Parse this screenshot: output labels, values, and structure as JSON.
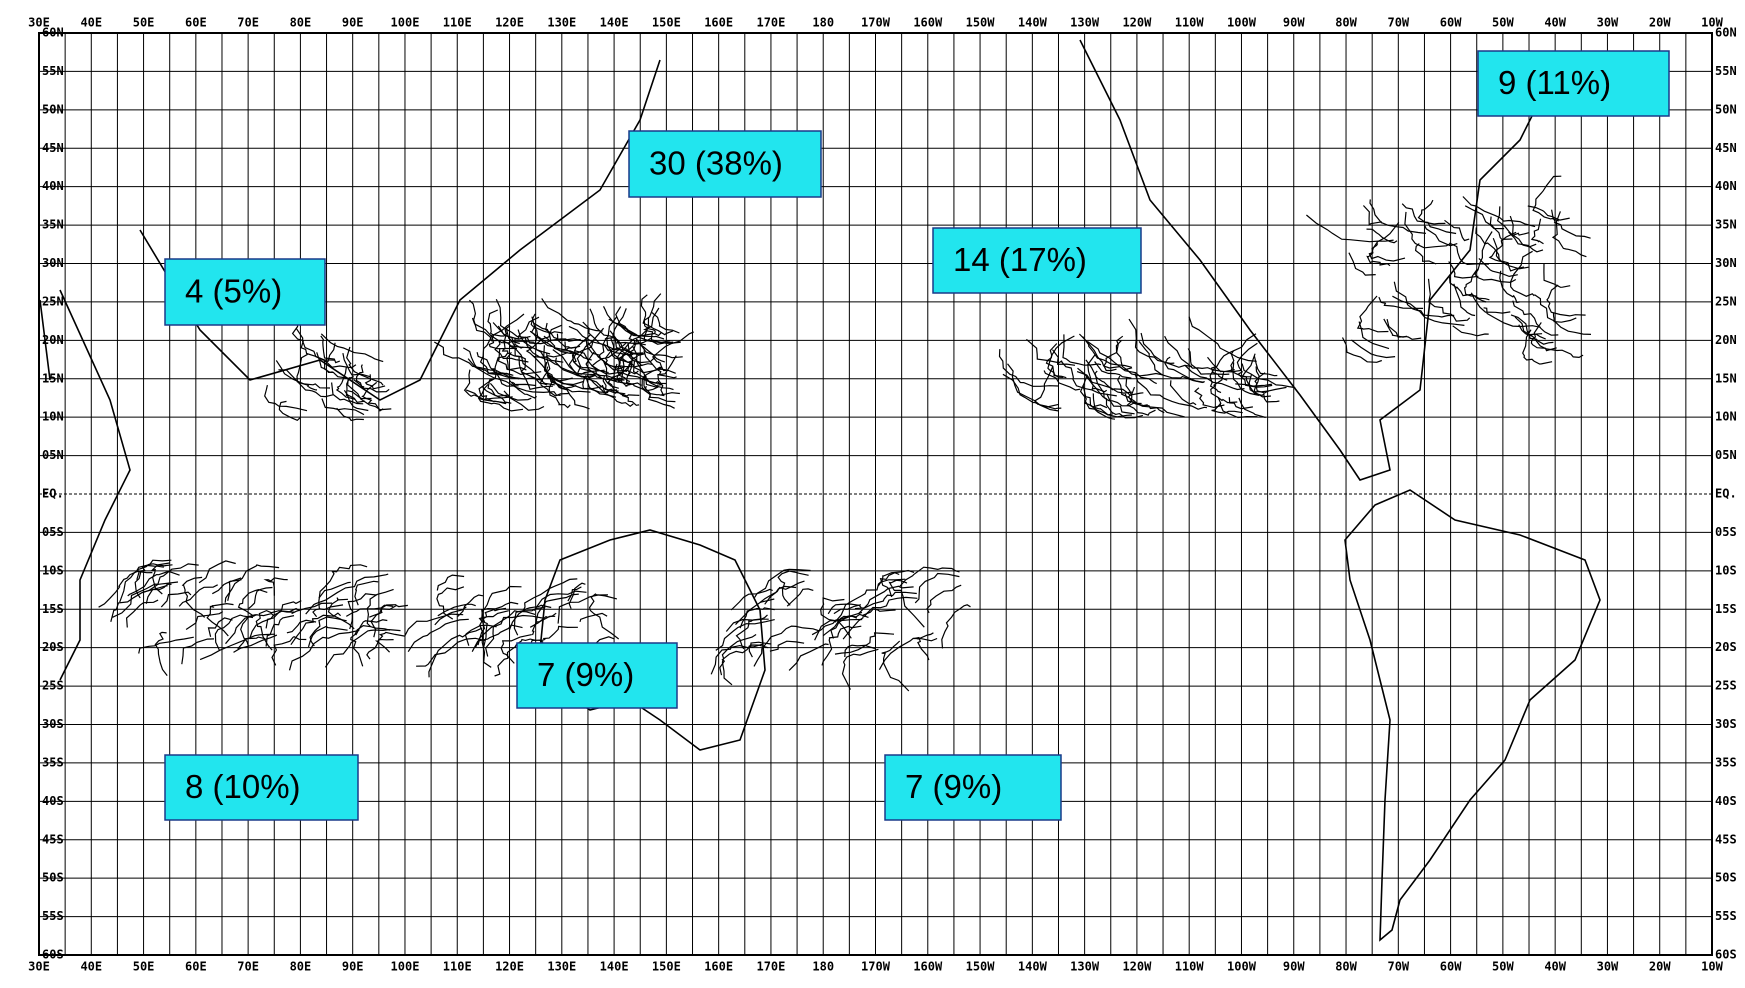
{
  "map": {
    "longitude_labels": [
      "30E",
      "40E",
      "50E",
      "60E",
      "70E",
      "80E",
      "90E",
      "100E",
      "110E",
      "120E",
      "130E",
      "140E",
      "150E",
      "160E",
      "170E",
      "180",
      "170W",
      "160W",
      "150W",
      "140W",
      "130W",
      "120W",
      "110W",
      "100W",
      "90W",
      "80W",
      "70W",
      "60W",
      "50W",
      "40W",
      "30W",
      "20W",
      "10W"
    ],
    "latitude_labels": [
      "60N",
      "55N",
      "50N",
      "45N",
      "40N",
      "35N",
      "30N",
      "25N",
      "20N",
      "15N",
      "10N",
      "05N",
      "EQ.",
      "05S",
      "10S",
      "15S",
      "20S",
      "25S",
      "30S",
      "35S",
      "40S",
      "45S",
      "50S",
      "55S",
      "60S"
    ],
    "regions": [
      {
        "label": "30 (38%)"
      },
      {
        "label": "9 (11%)"
      },
      {
        "label": "14 (17%)"
      },
      {
        "label": "4 (5%)"
      },
      {
        "label": "7 (9%)"
      },
      {
        "label": "8 (10%)"
      },
      {
        "label": "7 (9%)"
      }
    ]
  }
}
